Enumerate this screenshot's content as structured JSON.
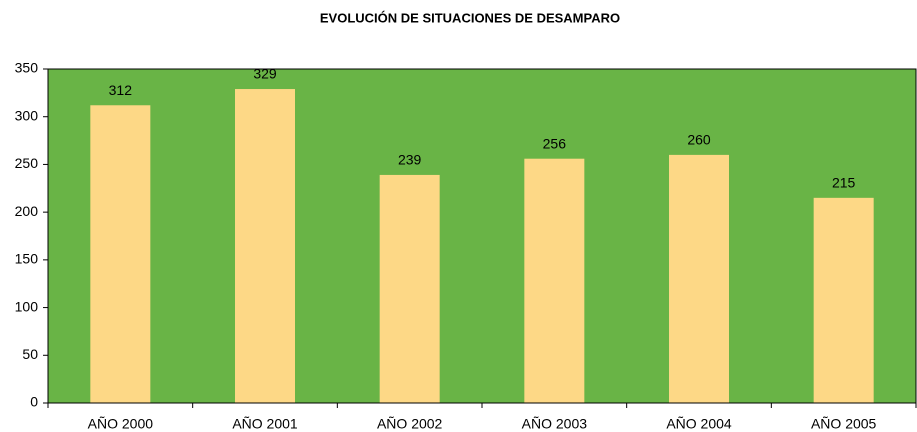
{
  "chart_data": {
    "type": "bar",
    "title": "EVOLUCIÓN DE SITUACIONES DE DESAMPARO",
    "categories": [
      "AÑO 2000",
      "AÑO 2001",
      "AÑO 2002",
      "AÑO 2003",
      "AÑO 2004",
      "AÑO 2005"
    ],
    "values": [
      312,
      329,
      239,
      256,
      260,
      215
    ],
    "color": "#fdd886",
    "plot_background": "#69b446",
    "ylim": [
      0,
      350
    ],
    "yticks": [
      0,
      50,
      100,
      150,
      200,
      250,
      300,
      350
    ],
    "grid": false,
    "data_labels": true
  }
}
